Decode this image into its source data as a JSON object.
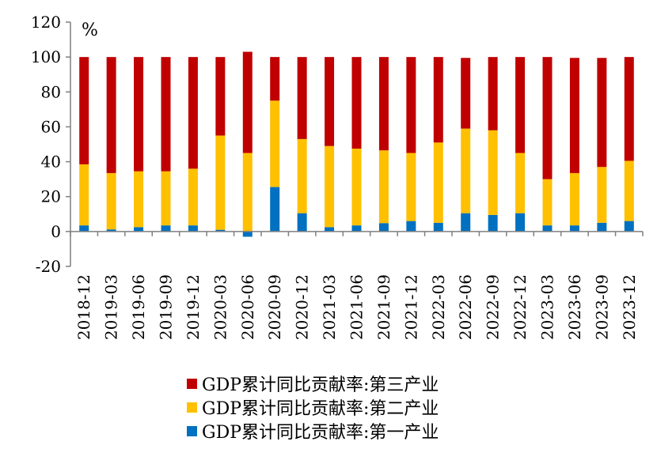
{
  "chart_data": {
    "type": "bar",
    "stacked": true,
    "unit": "%",
    "categories": [
      "2018-12",
      "2019-03",
      "2019-06",
      "2019-09",
      "2019-12",
      "2020-03",
      "2020-06",
      "2020-09",
      "2020-12",
      "2021-03",
      "2021-06",
      "2021-09",
      "2021-12",
      "2022-03",
      "2022-06",
      "2022-09",
      "2022-12",
      "2023-03",
      "2023-06",
      "2023-09",
      "2023-12"
    ],
    "ylim": [
      -20,
      120
    ],
    "yticks": [
      -20,
      0,
      20,
      40,
      60,
      80,
      100,
      120
    ],
    "series": [
      {
        "name": "GDP累计同比贡献率:第一产业",
        "color": "#0070C0",
        "values": [
          3.5,
          1.2,
          2.5,
          3.5,
          3.5,
          1.0,
          -3.0,
          25.5,
          10.5,
          2.5,
          3.5,
          4.8,
          6.0,
          5.0,
          10.5,
          9.5,
          10.5,
          3.5,
          3.5,
          5.0,
          6.0
        ]
      },
      {
        "name": "GDP累计同比贡献率:第二产业",
        "color": "#FFC000",
        "values": [
          35.0,
          32.3,
          32.0,
          31.0,
          32.5,
          54.0,
          45.0,
          49.5,
          42.5,
          46.5,
          44.0,
          41.7,
          39.0,
          46.0,
          48.5,
          48.5,
          34.5,
          26.5,
          30.0,
          32.0,
          34.5
        ]
      },
      {
        "name": "GDP累计同比贡献率:第三产业",
        "color": "#C00000",
        "values": [
          61.5,
          66.5,
          65.5,
          65.5,
          64.0,
          45.0,
          58.0,
          25.0,
          47.0,
          51.0,
          52.5,
          53.5,
          55.0,
          49.0,
          40.5,
          42.0,
          55.0,
          70.0,
          66.0,
          62.5,
          59.5
        ]
      }
    ],
    "legend_position": "bottom",
    "legend_order": [
      2,
      1,
      0
    ]
  }
}
